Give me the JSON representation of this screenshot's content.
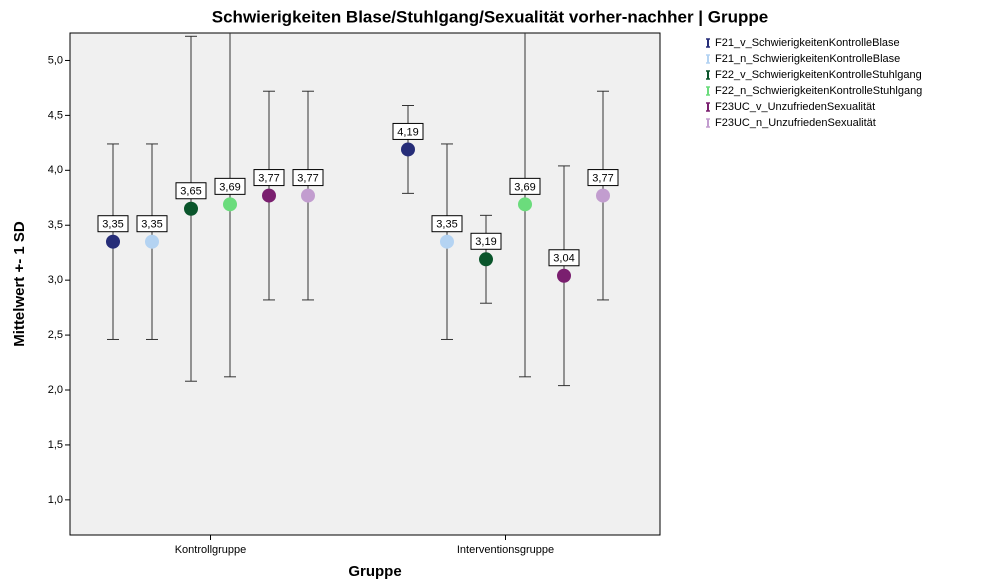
{
  "chart_data": {
    "type": "errorbar",
    "title": "Schwierigkeiten Blase/Stuhlgang/Sexualität vorher-nachher | Gruppe",
    "x_label": "Gruppe",
    "y_label": "Mittelwert +- 1 SD",
    "categories": [
      "Kontrollgruppe",
      "Interventionsgruppe"
    ],
    "ylim": [
      0.68,
      5.25
    ],
    "yticks": [
      {
        "value": 1.0,
        "label": "1,0"
      },
      {
        "value": 1.5,
        "label": "1,5"
      },
      {
        "value": 2.0,
        "label": "2,0"
      },
      {
        "value": 2.5,
        "label": "2,5"
      },
      {
        "value": 3.0,
        "label": "3,0"
      },
      {
        "value": 3.5,
        "label": "3,5"
      },
      {
        "value": 4.0,
        "label": "4,0"
      },
      {
        "value": 4.5,
        "label": "4,5"
      },
      {
        "value": 5.0,
        "label": "5,0"
      }
    ],
    "series": [
      {
        "name": "F21_v_SchwierigkeitenKontrolleBlase",
        "color": "#262d78",
        "values": [
          3.35,
          4.19
        ],
        "errors": [
          0.89,
          0.4
        ],
        "value_labels": [
          "3,35",
          "4,19"
        ]
      },
      {
        "name": "F21_n_SchwierigkeitenKontrolleBlase",
        "color": "#b4d3f2",
        "values": [
          3.35,
          3.35
        ],
        "errors": [
          0.89,
          0.89
        ],
        "value_labels": [
          "3,35",
          "3,35"
        ]
      },
      {
        "name": "F22_v_SchwierigkeitenKontrolleStuhlgang",
        "color": "#0a552b",
        "values": [
          3.65,
          3.19
        ],
        "errors": [
          1.57,
          0.4
        ],
        "value_labels": [
          "3,65",
          "3,19"
        ]
      },
      {
        "name": "F22_n_SchwierigkeitenKontrolleStuhlgang",
        "color": "#6bdc7c",
        "values": [
          3.69,
          3.69
        ],
        "errors": [
          1.57,
          1.57
        ],
        "value_labels": [
          "3,69",
          "3,69"
        ]
      },
      {
        "name": "F23UC_v_UnzufriedenSexualität",
        "color": "#7a1f6f",
        "values": [
          3.77,
          3.04
        ],
        "errors": [
          0.95,
          1.0
        ],
        "value_labels": [
          "3,77",
          "3,04"
        ]
      },
      {
        "name": "F23UC_n_UnzufriedenSexualität",
        "color": "#c29dcf",
        "values": [
          3.77,
          3.77
        ],
        "errors": [
          0.95,
          0.95
        ],
        "value_labels": [
          "3,77",
          "3,77"
        ]
      }
    ]
  }
}
